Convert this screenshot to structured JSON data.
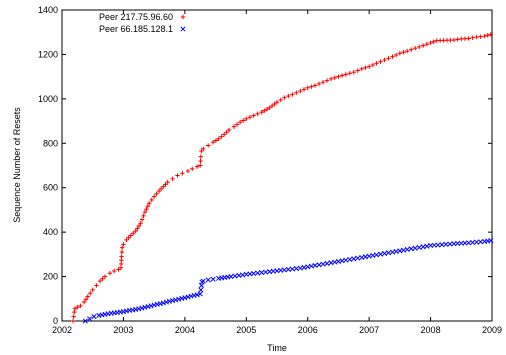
{
  "chart_data": {
    "type": "scatter",
    "xlabel": "Time",
    "ylabel": "Sequence Number of Resets",
    "xlim": [
      2002,
      2009
    ],
    "ylim": [
      0,
      1400
    ],
    "xticks": [
      "2002",
      "2003",
      "2004",
      "2005",
      "2006",
      "2007",
      "2008",
      "2009"
    ],
    "yticks": [
      "0",
      "200",
      "400",
      "600",
      "800",
      "1000",
      "1200",
      "1400"
    ],
    "grid": false,
    "legend_position": "top-left",
    "series": [
      {
        "name": "Peer 217.75.96.60",
        "marker": "plus",
        "color": "#ff0000",
        "points": [
          [
            2002.18,
            0
          ],
          [
            2002.19,
            20
          ],
          [
            2002.2,
            40
          ],
          [
            2002.21,
            55
          ],
          [
            2002.25,
            62
          ],
          [
            2002.3,
            68
          ],
          [
            2002.36,
            85
          ],
          [
            2002.42,
            110
          ],
          [
            2002.5,
            140
          ],
          [
            2002.56,
            160
          ],
          [
            2002.62,
            180
          ],
          [
            2002.7,
            200
          ],
          [
            2002.78,
            215
          ],
          [
            2002.85,
            225
          ],
          [
            2002.92,
            232
          ],
          [
            2002.96,
            240
          ],
          [
            2002.97,
            290
          ],
          [
            2002.98,
            330
          ],
          [
            2003.0,
            345
          ],
          [
            2003.05,
            365
          ],
          [
            2003.12,
            385
          ],
          [
            2003.2,
            405
          ],
          [
            2003.28,
            440
          ],
          [
            2003.35,
            490
          ],
          [
            2003.42,
            530
          ],
          [
            2003.5,
            560
          ],
          [
            2003.58,
            585
          ],
          [
            2003.65,
            605
          ],
          [
            2003.72,
            625
          ],
          [
            2003.8,
            640
          ],
          [
            2003.88,
            655
          ],
          [
            2003.96,
            665
          ],
          [
            2004.05,
            675
          ],
          [
            2004.12,
            685
          ],
          [
            2004.2,
            695
          ],
          [
            2004.25,
            700
          ],
          [
            2004.26,
            740
          ],
          [
            2004.27,
            765
          ],
          [
            2004.3,
            775
          ],
          [
            2004.38,
            790
          ],
          [
            2004.46,
            805
          ],
          [
            2004.55,
            820
          ],
          [
            2004.64,
            840
          ],
          [
            2004.72,
            860
          ],
          [
            2004.8,
            875
          ],
          [
            2004.9,
            895
          ],
          [
            2005.0,
            910
          ],
          [
            2005.12,
            925
          ],
          [
            2005.25,
            940
          ],
          [
            2005.38,
            960
          ],
          [
            2005.5,
            985
          ],
          [
            2005.62,
            1005
          ],
          [
            2005.75,
            1020
          ],
          [
            2005.88,
            1035
          ],
          [
            2006.0,
            1050
          ],
          [
            2006.12,
            1060
          ],
          [
            2006.25,
            1075
          ],
          [
            2006.38,
            1090
          ],
          [
            2006.5,
            1100
          ],
          [
            2006.62,
            1110
          ],
          [
            2006.75,
            1120
          ],
          [
            2006.88,
            1135
          ],
          [
            2007.0,
            1145
          ],
          [
            2007.12,
            1160
          ],
          [
            2007.25,
            1175
          ],
          [
            2007.38,
            1190
          ],
          [
            2007.5,
            1205
          ],
          [
            2007.62,
            1215
          ],
          [
            2007.75,
            1228
          ],
          [
            2007.88,
            1240
          ],
          [
            2008.0,
            1252
          ],
          [
            2008.1,
            1262
          ],
          [
            2008.38,
            1265
          ],
          [
            2008.5,
            1270
          ],
          [
            2008.62,
            1272
          ],
          [
            2008.75,
            1278
          ],
          [
            2008.88,
            1282
          ],
          [
            2008.98,
            1290
          ]
        ]
      },
      {
        "name": "Peer 66.185.128.1",
        "marker": "cross",
        "color": "#0000ff",
        "points": [
          [
            2002.38,
            0
          ],
          [
            2002.45,
            10
          ],
          [
            2002.52,
            20
          ],
          [
            2002.6,
            25
          ],
          [
            2002.7,
            30
          ],
          [
            2002.8,
            35
          ],
          [
            2002.9,
            38
          ],
          [
            2003.0,
            42
          ],
          [
            2003.1,
            48
          ],
          [
            2003.2,
            52
          ],
          [
            2003.3,
            58
          ],
          [
            2003.4,
            65
          ],
          [
            2003.5,
            72
          ],
          [
            2003.6,
            78
          ],
          [
            2003.7,
            85
          ],
          [
            2003.8,
            92
          ],
          [
            2003.9,
            98
          ],
          [
            2004.0,
            105
          ],
          [
            2004.1,
            112
          ],
          [
            2004.2,
            118
          ],
          [
            2004.25,
            122
          ],
          [
            2004.26,
            140
          ],
          [
            2004.27,
            160
          ],
          [
            2004.28,
            175
          ],
          [
            2004.3,
            180
          ],
          [
            2004.38,
            185
          ],
          [
            2004.46,
            188
          ],
          [
            2004.55,
            192
          ],
          [
            2004.65,
            196
          ],
          [
            2004.75,
            200
          ],
          [
            2004.88,
            205
          ],
          [
            2005.0,
            210
          ],
          [
            2005.12,
            214
          ],
          [
            2005.25,
            218
          ],
          [
            2005.38,
            222
          ],
          [
            2005.5,
            226
          ],
          [
            2005.62,
            230
          ],
          [
            2005.75,
            234
          ],
          [
            2005.88,
            238
          ],
          [
            2006.0,
            244
          ],
          [
            2006.12,
            250
          ],
          [
            2006.25,
            256
          ],
          [
            2006.38,
            262
          ],
          [
            2006.5,
            268
          ],
          [
            2006.62,
            274
          ],
          [
            2006.75,
            280
          ],
          [
            2006.88,
            286
          ],
          [
            2007.0,
            292
          ],
          [
            2007.12,
            298
          ],
          [
            2007.25,
            304
          ],
          [
            2007.38,
            310
          ],
          [
            2007.5,
            316
          ],
          [
            2007.62,
            322
          ],
          [
            2007.75,
            328
          ],
          [
            2007.88,
            334
          ],
          [
            2008.0,
            340
          ],
          [
            2008.12,
            342
          ],
          [
            2008.25,
            345
          ],
          [
            2008.38,
            348
          ],
          [
            2008.5,
            350
          ],
          [
            2008.62,
            352
          ],
          [
            2008.75,
            355
          ],
          [
            2008.88,
            358
          ],
          [
            2008.98,
            362
          ]
        ]
      }
    ]
  }
}
